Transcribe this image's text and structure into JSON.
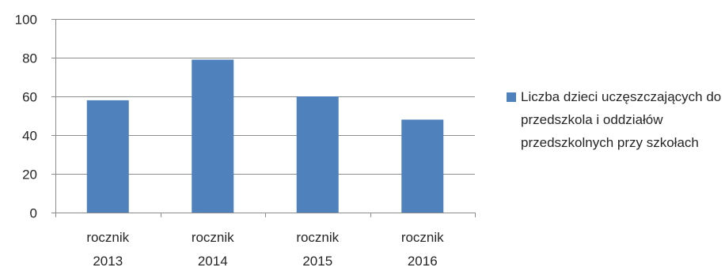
{
  "chart_data": {
    "type": "bar",
    "categories": [
      [
        "rocznik",
        "2013"
      ],
      [
        "rocznik",
        "2014"
      ],
      [
        "rocznik",
        "2015"
      ],
      [
        "rocznik",
        "2016"
      ]
    ],
    "series": [
      {
        "name": "Liczba dzieci uczęszczających do przedszkola i oddziałów przedszkolnych przy szkołach",
        "values": [
          58,
          79,
          60,
          48
        ],
        "color": "#4f81bd"
      }
    ],
    "yticks": [
      0,
      20,
      40,
      60,
      80,
      100
    ],
    "ylim": [
      0,
      100
    ],
    "grid": true,
    "legend_position": "right"
  }
}
